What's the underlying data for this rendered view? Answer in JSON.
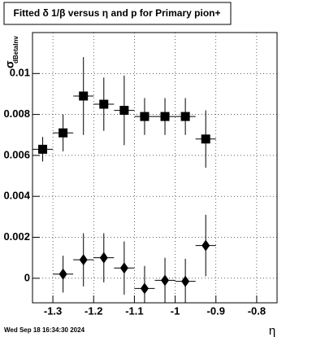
{
  "chart_data": {
    "type": "scatter",
    "title": "Fitted δ 1/β versus η and p for Primary pion+",
    "xlabel": "η",
    "ylabel": "σ",
    "ylabel_sub": "dBetaInv",
    "timestamp": "Wed Sep 18 16:34:30 2024",
    "x": [
      -1.325,
      -1.275,
      -1.225,
      -1.175,
      -1.125,
      -1.075,
      -1.025,
      -0.975,
      -0.925
    ],
    "xerr": 0.025,
    "series": [
      {
        "marker": "square",
        "color": "#000000",
        "values": [
          0.0063,
          0.0071,
          0.0089,
          0.0085,
          0.0082,
          0.0079,
          0.0079,
          0.0079,
          0.0068
        ],
        "errors": [
          0.0006,
          0.0009,
          0.0019,
          0.0013,
          0.0017,
          0.0009,
          0.0009,
          0.0009,
          0.0014
        ]
      },
      {
        "marker": "diamond",
        "color": "#000000",
        "values": [
          null,
          0.0002,
          0.0009,
          0.001,
          0.0005,
          -0.0005,
          -0.0001,
          -0.00015,
          0.0016
        ],
        "errors": [
          null,
          0.0009,
          0.0013,
          0.0012,
          0.0013,
          0.0011,
          0.0011,
          0.0011,
          0.0015
        ]
      }
    ],
    "xlim": [
      -1.35,
      -0.75
    ],
    "ylim": [
      -0.0012,
      0.012
    ],
    "xticks": [
      -1.3,
      -1.2,
      -1.1,
      -1,
      -0.9,
      -0.8
    ],
    "yticks": [
      0,
      0.002,
      0.004,
      0.006,
      0.008,
      0.01
    ],
    "grid": true
  }
}
